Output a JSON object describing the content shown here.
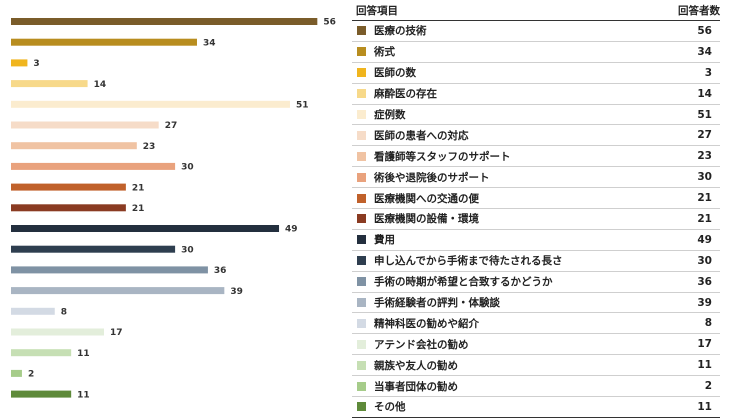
{
  "chart_data": {
    "type": "bar",
    "orientation": "horizontal",
    "xlim": [
      0,
      60
    ],
    "legend_header": {
      "item": "回答項目",
      "count": "回答者数"
    },
    "categories": [
      "医療の技術",
      "術式",
      "医師の数",
      "麻酔医の存在",
      "症例数",
      "医師の患者への対応",
      "看護師等スタッフのサポート",
      "術後や退院後のサポート",
      "医療機関への交通の便",
      "医療機関の設備・環境",
      "費用",
      "申し込んでから手術まで待たされる長さ",
      "手術の時期が希望と合致するかどうか",
      "手術経験者の評判・体験談",
      "精神科医の勧めや紹介",
      "アテンド会社の勧め",
      "親族や友人の勧め",
      "当事者団体の勧め",
      "その他"
    ],
    "values": [
      56,
      34,
      3,
      14,
      51,
      27,
      23,
      30,
      21,
      21,
      49,
      30,
      36,
      39,
      8,
      17,
      11,
      2,
      11
    ],
    "colors": [
      "#7a5c2a",
      "#b88d1f",
      "#f0b51e",
      "#f7d98a",
      "#fbeccf",
      "#f6dcc8",
      "#f0c3a3",
      "#e9a27d",
      "#c0612b",
      "#8a3b22",
      "#232f3e",
      "#2e3e4f",
      "#7f92a4",
      "#a9b5c3",
      "#d3dae4",
      "#e3eedb",
      "#c6dfb4",
      "#a6cc8a",
      "#5e8a3a"
    ]
  }
}
